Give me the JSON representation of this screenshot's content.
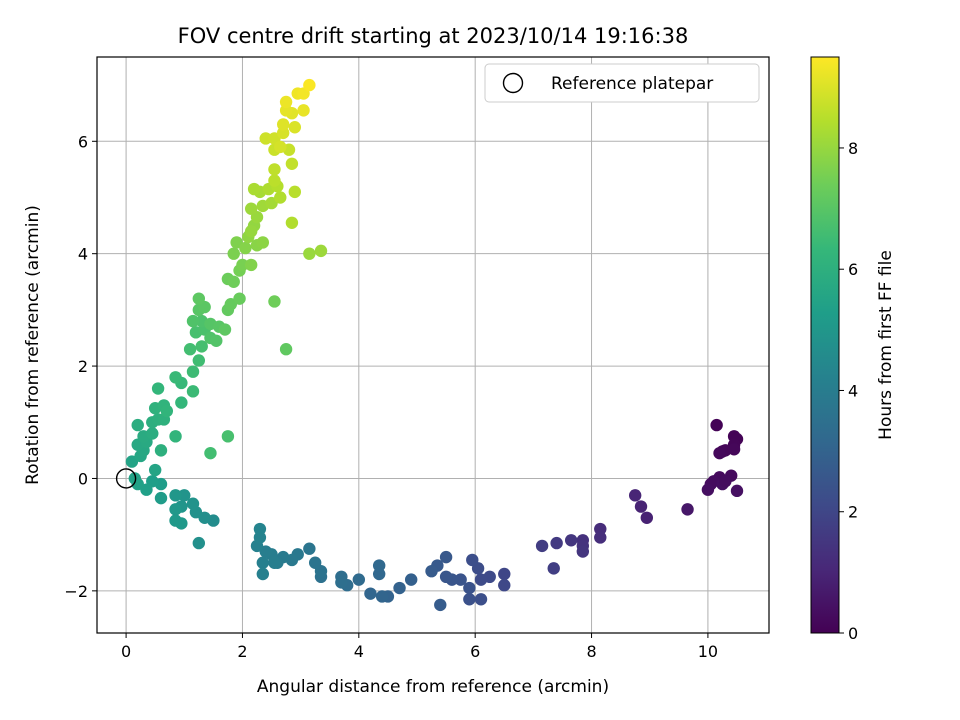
{
  "chart_data": {
    "type": "scatter",
    "title": "FOV centre drift starting at 2023/10/14 19:16:38",
    "xlabel": "Angular distance from reference (arcmin)",
    "ylabel": "Rotation from reference (arcmin)",
    "xlim": [
      -0.5,
      11.05
    ],
    "ylim": [
      -2.75,
      7.5
    ],
    "xticks": [
      0,
      2,
      4,
      6,
      8,
      10
    ],
    "yticks": [
      -2,
      0,
      2,
      4,
      6
    ],
    "grid": true,
    "legend": {
      "placement": "top-right",
      "entries": [
        {
          "label": "Reference platepar",
          "marker": "open-circle"
        }
      ]
    },
    "reference_point": {
      "x": 0,
      "y": 0
    },
    "colorbar": {
      "label": "Hours from first FF file",
      "min": 0,
      "max": 9.5,
      "ticks": [
        0,
        2,
        4,
        6,
        8
      ],
      "colormap": "viridis"
    },
    "points": [
      {
        "x": 10.15,
        "y": 0.95,
        "c": 0.05
      },
      {
        "x": 10.45,
        "y": 0.75,
        "c": 0.05
      },
      {
        "x": 10.5,
        "y": 0.7,
        "c": 0.05
      },
      {
        "x": 10.45,
        "y": 0.6,
        "c": 0.1
      },
      {
        "x": 10.3,
        "y": 0.5,
        "c": 0.15
      },
      {
        "x": 10.25,
        "y": 0.48,
        "c": 0.15
      },
      {
        "x": 10.45,
        "y": 0.52,
        "c": 0.15
      },
      {
        "x": 10.2,
        "y": 0.45,
        "c": 0.2
      },
      {
        "x": 10.4,
        "y": 0.05,
        "c": 0.25
      },
      {
        "x": 10.2,
        "y": 0.02,
        "c": 0.25
      },
      {
        "x": 10.1,
        "y": -0.05,
        "c": 0.3
      },
      {
        "x": 10.05,
        "y": -0.1,
        "c": 0.3
      },
      {
        "x": 10.25,
        "y": -0.1,
        "c": 0.35
      },
      {
        "x": 10.0,
        "y": -0.2,
        "c": 0.35
      },
      {
        "x": 10.5,
        "y": -0.22,
        "c": 0.4
      },
      {
        "x": 10.3,
        "y": -0.05,
        "c": 0.3
      },
      {
        "x": 9.65,
        "y": -0.55,
        "c": 0.6
      },
      {
        "x": 8.95,
        "y": -0.7,
        "c": 0.9
      },
      {
        "x": 8.85,
        "y": -0.5,
        "c": 0.95
      },
      {
        "x": 8.75,
        "y": -0.3,
        "c": 1.0
      },
      {
        "x": 8.15,
        "y": -0.9,
        "c": 1.2
      },
      {
        "x": 8.15,
        "y": -1.05,
        "c": 1.25
      },
      {
        "x": 7.85,
        "y": -1.1,
        "c": 1.35
      },
      {
        "x": 7.85,
        "y": -1.2,
        "c": 1.4
      },
      {
        "x": 7.85,
        "y": -1.3,
        "c": 1.45
      },
      {
        "x": 7.65,
        "y": -1.1,
        "c": 1.5
      },
      {
        "x": 7.4,
        "y": -1.15,
        "c": 1.6
      },
      {
        "x": 7.15,
        "y": -1.2,
        "c": 1.7
      },
      {
        "x": 7.35,
        "y": -1.6,
        "c": 1.75
      },
      {
        "x": 6.5,
        "y": -1.7,
        "c": 2.0
      },
      {
        "x": 6.5,
        "y": -1.9,
        "c": 2.05
      },
      {
        "x": 6.25,
        "y": -1.75,
        "c": 2.1
      },
      {
        "x": 6.1,
        "y": -1.8,
        "c": 2.15
      },
      {
        "x": 6.05,
        "y": -1.6,
        "c": 2.2
      },
      {
        "x": 5.95,
        "y": -1.45,
        "c": 2.25
      },
      {
        "x": 6.1,
        "y": -2.15,
        "c": 2.3
      },
      {
        "x": 5.9,
        "y": -2.15,
        "c": 2.35
      },
      {
        "x": 5.9,
        "y": -1.95,
        "c": 2.4
      },
      {
        "x": 5.75,
        "y": -1.8,
        "c": 2.45
      },
      {
        "x": 5.6,
        "y": -1.8,
        "c": 2.5
      },
      {
        "x": 5.5,
        "y": -1.75,
        "c": 2.55
      },
      {
        "x": 5.5,
        "y": -1.4,
        "c": 2.6
      },
      {
        "x": 5.35,
        "y": -1.55,
        "c": 2.65
      },
      {
        "x": 5.25,
        "y": -1.65,
        "c": 2.7
      },
      {
        "x": 5.4,
        "y": -2.25,
        "c": 2.75
      },
      {
        "x": 4.9,
        "y": -1.8,
        "c": 2.9
      },
      {
        "x": 4.7,
        "y": -1.95,
        "c": 2.95
      },
      {
        "x": 4.5,
        "y": -2.1,
        "c": 3.0
      },
      {
        "x": 4.4,
        "y": -2.1,
        "c": 3.05
      },
      {
        "x": 4.2,
        "y": -2.05,
        "c": 3.1
      },
      {
        "x": 4.35,
        "y": -1.7,
        "c": 3.15
      },
      {
        "x": 4.35,
        "y": -1.55,
        "c": 3.2
      },
      {
        "x": 4.0,
        "y": -1.8,
        "c": 3.3
      },
      {
        "x": 3.8,
        "y": -1.9,
        "c": 3.35
      },
      {
        "x": 3.7,
        "y": -1.75,
        "c": 3.4
      },
      {
        "x": 3.7,
        "y": -1.85,
        "c": 3.45
      },
      {
        "x": 3.35,
        "y": -1.75,
        "c": 3.55
      },
      {
        "x": 3.35,
        "y": -1.65,
        "c": 3.6
      },
      {
        "x": 3.25,
        "y": -1.5,
        "c": 3.65
      },
      {
        "x": 3.15,
        "y": -1.25,
        "c": 3.7
      },
      {
        "x": 2.95,
        "y": -1.35,
        "c": 3.8
      },
      {
        "x": 2.85,
        "y": -1.45,
        "c": 3.85
      },
      {
        "x": 2.7,
        "y": -1.4,
        "c": 3.9
      },
      {
        "x": 2.6,
        "y": -1.5,
        "c": 3.95
      },
      {
        "x": 2.5,
        "y": -1.35,
        "c": 4.0
      },
      {
        "x": 2.4,
        "y": -1.3,
        "c": 4.05
      },
      {
        "x": 2.35,
        "y": -1.5,
        "c": 4.1
      },
      {
        "x": 2.35,
        "y": -1.7,
        "c": 4.15
      },
      {
        "x": 2.25,
        "y": -1.2,
        "c": 4.2
      },
      {
        "x": 2.3,
        "y": -1.05,
        "c": 4.25
      },
      {
        "x": 2.3,
        "y": -0.9,
        "c": 4.3
      },
      {
        "x": 2.55,
        "y": -1.5,
        "c": 4.05
      },
      {
        "x": 1.5,
        "y": -0.75,
        "c": 4.6
      },
      {
        "x": 1.35,
        "y": -0.7,
        "c": 4.7
      },
      {
        "x": 1.25,
        "y": -1.15,
        "c": 4.75
      },
      {
        "x": 1.2,
        "y": -0.6,
        "c": 4.8
      },
      {
        "x": 1.15,
        "y": -0.45,
        "c": 4.85
      },
      {
        "x": 1.0,
        "y": -0.3,
        "c": 4.9
      },
      {
        "x": 0.95,
        "y": -0.5,
        "c": 4.95
      },
      {
        "x": 0.85,
        "y": -0.3,
        "c": 5.0
      },
      {
        "x": 0.85,
        "y": -0.55,
        "c": 5.05
      },
      {
        "x": 0.85,
        "y": -0.75,
        "c": 5.1
      },
      {
        "x": 0.95,
        "y": -0.8,
        "c": 5.1
      },
      {
        "x": 0.6,
        "y": -0.35,
        "c": 5.2
      },
      {
        "x": 0.6,
        "y": -0.1,
        "c": 5.25
      },
      {
        "x": 0.45,
        "y": -0.05,
        "c": 5.3
      },
      {
        "x": 0.35,
        "y": -0.2,
        "c": 5.35
      },
      {
        "x": 0.2,
        "y": -0.1,
        "c": 5.4
      },
      {
        "x": 0.15,
        "y": -0.0,
        "c": 5.45
      },
      {
        "x": 0.1,
        "y": 0.3,
        "c": 5.5
      },
      {
        "x": 0.5,
        "y": 0.15,
        "c": 5.55
      },
      {
        "x": 0.25,
        "y": 0.4,
        "c": 5.6
      },
      {
        "x": 0.3,
        "y": 0.5,
        "c": 5.65
      },
      {
        "x": 0.2,
        "y": 0.6,
        "c": 5.7
      },
      {
        "x": 0.35,
        "y": 0.65,
        "c": 5.75
      },
      {
        "x": 0.3,
        "y": 0.75,
        "c": 5.8
      },
      {
        "x": 0.45,
        "y": 0.8,
        "c": 5.85
      },
      {
        "x": 0.2,
        "y": 0.95,
        "c": 5.9
      },
      {
        "x": 0.45,
        "y": 1.0,
        "c": 5.95
      },
      {
        "x": 0.55,
        "y": 1.05,
        "c": 6.0
      },
      {
        "x": 0.65,
        "y": 1.05,
        "c": 6.05
      },
      {
        "x": 0.6,
        "y": 0.5,
        "c": 6.0
      },
      {
        "x": 0.5,
        "y": 1.25,
        "c": 6.1
      },
      {
        "x": 0.65,
        "y": 1.3,
        "c": 6.15
      },
      {
        "x": 0.7,
        "y": 1.2,
        "c": 6.2
      },
      {
        "x": 0.55,
        "y": 1.6,
        "c": 6.25
      },
      {
        "x": 0.85,
        "y": 0.75,
        "c": 6.2
      },
      {
        "x": 0.95,
        "y": 1.35,
        "c": 6.3
      },
      {
        "x": 0.95,
        "y": 1.7,
        "c": 6.35
      },
      {
        "x": 0.85,
        "y": 1.8,
        "c": 6.4
      },
      {
        "x": 1.15,
        "y": 1.55,
        "c": 6.45
      },
      {
        "x": 1.15,
        "y": 1.9,
        "c": 6.5
      },
      {
        "x": 1.25,
        "y": 2.1,
        "c": 6.55
      },
      {
        "x": 1.1,
        "y": 2.3,
        "c": 6.6
      },
      {
        "x": 1.3,
        "y": 2.35,
        "c": 6.65
      },
      {
        "x": 1.45,
        "y": 0.45,
        "c": 6.6
      },
      {
        "x": 1.75,
        "y": 0.75,
        "c": 6.7
      },
      {
        "x": 1.2,
        "y": 2.6,
        "c": 6.7
      },
      {
        "x": 1.35,
        "y": 2.65,
        "c": 6.75
      },
      {
        "x": 1.3,
        "y": 2.8,
        "c": 6.8
      },
      {
        "x": 1.15,
        "y": 2.8,
        "c": 6.85
      },
      {
        "x": 1.45,
        "y": 2.5,
        "c": 6.85
      },
      {
        "x": 1.55,
        "y": 2.45,
        "c": 6.9
      },
      {
        "x": 1.45,
        "y": 2.75,
        "c": 6.95
      },
      {
        "x": 1.6,
        "y": 2.7,
        "c": 7.0
      },
      {
        "x": 1.25,
        "y": 3.0,
        "c": 7.0
      },
      {
        "x": 1.35,
        "y": 3.05,
        "c": 7.05
      },
      {
        "x": 1.25,
        "y": 3.2,
        "c": 7.1
      },
      {
        "x": 1.7,
        "y": 2.65,
        "c": 7.1
      },
      {
        "x": 2.75,
        "y": 2.3,
        "c": 7.15
      },
      {
        "x": 1.75,
        "y": 3.0,
        "c": 7.2
      },
      {
        "x": 1.8,
        "y": 3.1,
        "c": 7.25
      },
      {
        "x": 1.95,
        "y": 3.2,
        "c": 7.3
      },
      {
        "x": 1.75,
        "y": 3.55,
        "c": 7.35
      },
      {
        "x": 1.85,
        "y": 3.5,
        "c": 7.4
      },
      {
        "x": 2.55,
        "y": 3.15,
        "c": 7.4
      },
      {
        "x": 1.95,
        "y": 3.7,
        "c": 7.5
      },
      {
        "x": 2.0,
        "y": 3.8,
        "c": 7.55
      },
      {
        "x": 1.85,
        "y": 4.0,
        "c": 7.6
      },
      {
        "x": 1.9,
        "y": 4.2,
        "c": 7.65
      },
      {
        "x": 2.15,
        "y": 3.8,
        "c": 7.7
      },
      {
        "x": 2.05,
        "y": 4.1,
        "c": 7.75
      },
      {
        "x": 2.25,
        "y": 4.15,
        "c": 7.8
      },
      {
        "x": 2.35,
        "y": 4.2,
        "c": 7.85
      },
      {
        "x": 2.1,
        "y": 4.3,
        "c": 7.9
      },
      {
        "x": 2.2,
        "y": 4.5,
        "c": 7.95
      },
      {
        "x": 2.15,
        "y": 4.4,
        "c": 8.0
      },
      {
        "x": 2.25,
        "y": 4.65,
        "c": 8.05
      },
      {
        "x": 2.15,
        "y": 4.8,
        "c": 8.1
      },
      {
        "x": 3.15,
        "y": 4.0,
        "c": 8.05
      },
      {
        "x": 3.35,
        "y": 4.05,
        "c": 8.1
      },
      {
        "x": 2.35,
        "y": 4.85,
        "c": 8.15
      },
      {
        "x": 2.5,
        "y": 4.9,
        "c": 8.2
      },
      {
        "x": 2.3,
        "y": 5.1,
        "c": 8.25
      },
      {
        "x": 2.2,
        "y": 5.15,
        "c": 8.3
      },
      {
        "x": 2.45,
        "y": 5.15,
        "c": 8.35
      },
      {
        "x": 2.65,
        "y": 5.0,
        "c": 8.4
      },
      {
        "x": 2.6,
        "y": 5.2,
        "c": 8.45
      },
      {
        "x": 2.85,
        "y": 4.55,
        "c": 8.4
      },
      {
        "x": 2.9,
        "y": 5.1,
        "c": 8.5
      },
      {
        "x": 2.55,
        "y": 5.3,
        "c": 8.55
      },
      {
        "x": 2.55,
        "y": 5.5,
        "c": 8.6
      },
      {
        "x": 2.85,
        "y": 5.6,
        "c": 8.65
      },
      {
        "x": 2.8,
        "y": 5.85,
        "c": 8.7
      },
      {
        "x": 2.55,
        "y": 5.85,
        "c": 8.75
      },
      {
        "x": 2.4,
        "y": 6.05,
        "c": 8.8
      },
      {
        "x": 2.55,
        "y": 6.05,
        "c": 8.85
      },
      {
        "x": 2.65,
        "y": 5.9,
        "c": 8.9
      },
      {
        "x": 2.7,
        "y": 6.15,
        "c": 8.95
      },
      {
        "x": 2.9,
        "y": 6.25,
        "c": 9.0
      },
      {
        "x": 2.7,
        "y": 6.3,
        "c": 9.05
      },
      {
        "x": 2.85,
        "y": 6.5,
        "c": 9.1
      },
      {
        "x": 2.75,
        "y": 6.55,
        "c": 9.15
      },
      {
        "x": 3.05,
        "y": 6.55,
        "c": 9.2
      },
      {
        "x": 2.75,
        "y": 6.7,
        "c": 9.25
      },
      {
        "x": 2.95,
        "y": 6.85,
        "c": 9.3
      },
      {
        "x": 3.05,
        "y": 6.85,
        "c": 9.35
      },
      {
        "x": 3.15,
        "y": 7.0,
        "c": 9.45
      }
    ]
  }
}
